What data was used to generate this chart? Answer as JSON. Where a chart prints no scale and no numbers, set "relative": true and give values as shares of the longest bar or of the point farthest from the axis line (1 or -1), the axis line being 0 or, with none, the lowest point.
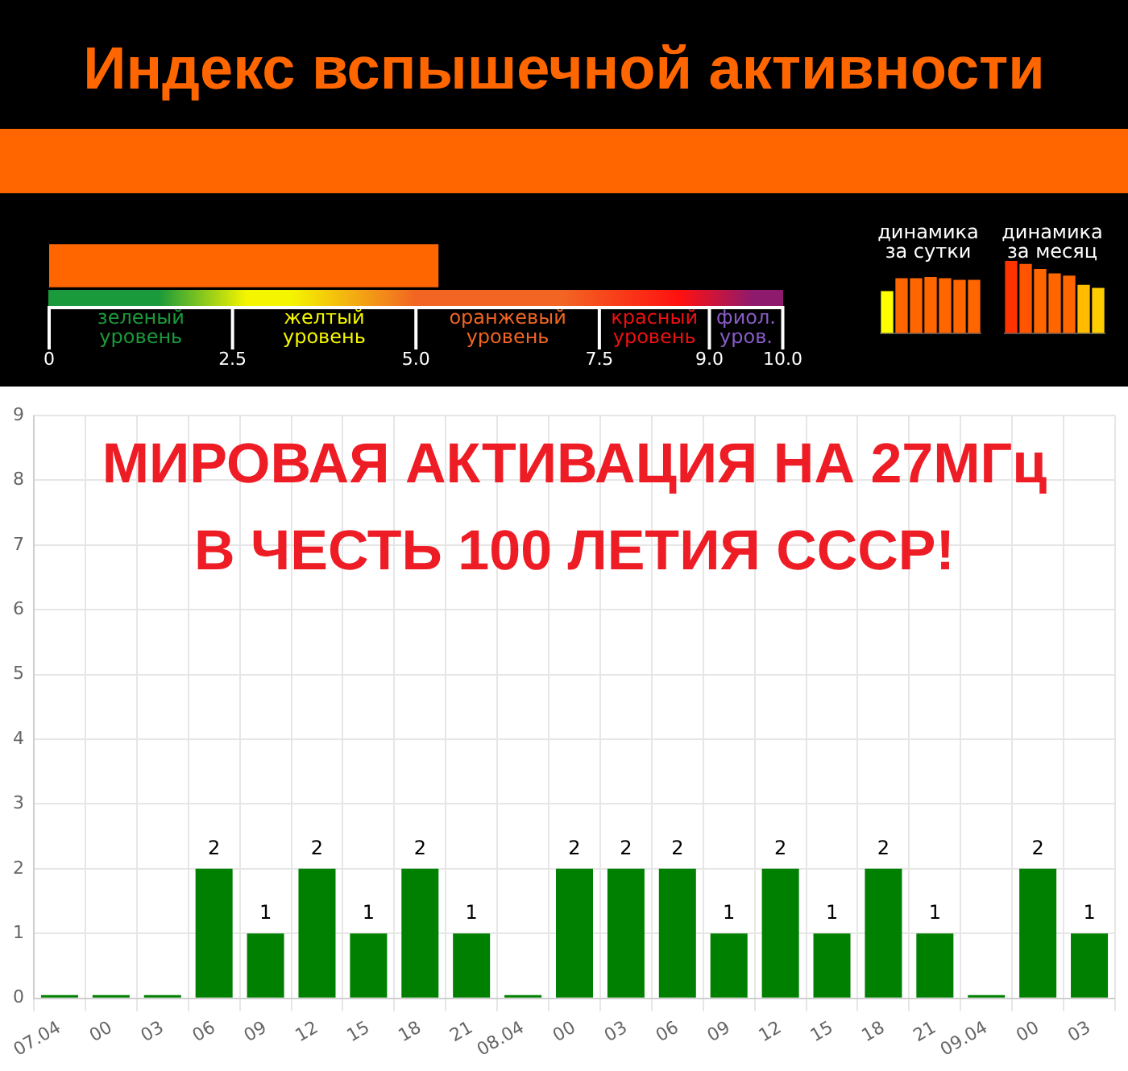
{
  "chart_data": [
    {
      "type": "bar",
      "title": "Индекс вспышечной активности",
      "orientation": "horizontal",
      "categories": [
        null
      ],
      "values": [
        5.3
      ],
      "color": "#ff6600",
      "xlim": [
        0,
        10
      ],
      "xticks": [
        0,
        {
          "value": 2.5,
          "label": "2.5"
        },
        {
          "value": 5,
          "label": "5.0"
        },
        {
          "value": 7.5,
          "label": "7.5"
        },
        {
          "value": 9,
          "label": "9.0"
        },
        {
          "value": 10,
          "label": "10.0"
        }
      ],
      "tick_labels": "x",
      "annotations": [
        "зеленый уровень",
        "желтый уровень",
        "оранжевый уровень",
        "красный уровень",
        "фиол. уров."
      ]
    },
    {
      "type": "bar",
      "title": "динамика за сутки",
      "relative": true,
      "categories": [
        null,
        null,
        null,
        null,
        null,
        null,
        null
      ],
      "values": [
        0.74,
        0.97,
        0.97,
        1,
        0.97,
        0.94,
        0.94
      ],
      "colors": [
        "#ffff00",
        "#ff6600",
        "#ff6600",
        "#ff6600",
        "#ff6600",
        "#ff6600",
        "#ff6600"
      ]
    },
    {
      "type": "bar",
      "title": "динамика за месяц",
      "relative": true,
      "categories": [
        null,
        null,
        null,
        null,
        null,
        null,
        null
      ],
      "values": [
        1,
        0.95,
        0.88,
        0.82,
        0.79,
        0.66,
        0.62
      ],
      "colors": [
        "#ff3300",
        "#ff5500",
        "#ff6600",
        "#ff6600",
        "#ff6600",
        "#ffbb00",
        "#ffcc00"
      ]
    },
    {
      "type": "bar",
      "categories": [
        "07.04",
        "00",
        "03",
        "06",
        "09",
        "12",
        "15",
        "18",
        "21",
        "08.04",
        "00",
        "03",
        "06",
        "09",
        "12",
        "15",
        "18",
        "21",
        "09.04",
        "00",
        "03"
      ],
      "values": [
        0,
        0,
        0,
        2,
        1,
        2,
        1,
        2,
        1,
        0,
        2,
        2,
        2,
        1,
        2,
        1,
        2,
        1,
        0,
        2,
        1
      ],
      "value_labels": [
        null,
        null,
        null,
        "2",
        "1",
        "2",
        "1",
        "2",
        "1",
        null,
        "2",
        "2",
        "2",
        "1",
        "2",
        "1",
        "2",
        "1",
        null,
        "2",
        "1"
      ],
      "color": "#008000",
      "ylim": [
        0,
        9
      ],
      "yticks": [
        0,
        1,
        2,
        3,
        4,
        5,
        6,
        7,
        8,
        9
      ],
      "grid": true,
      "annotations": [
        "МИРОВАЯ АКТИВАЦИЯ НА 27МГц",
        "В ЧЕСТЬ 100 ЛЕТИЯ СССР!"
      ]
    }
  ]
}
